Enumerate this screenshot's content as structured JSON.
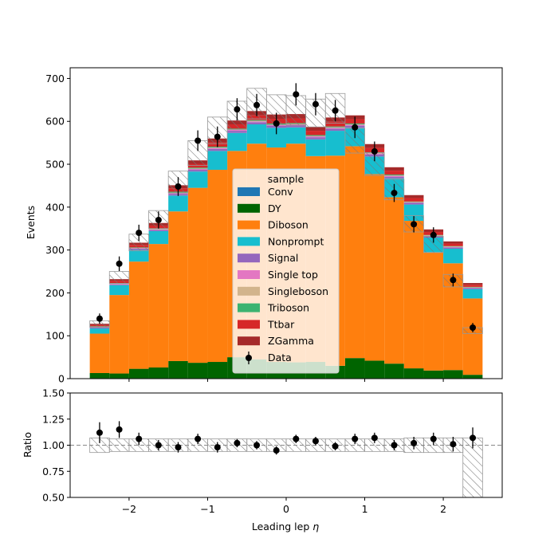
{
  "chart_data": [
    {
      "type": "bar",
      "stacked": true,
      "ylabel": "Events",
      "ylim": [
        0,
        725
      ],
      "xlim": [
        -2.75,
        2.75
      ],
      "yticks": [
        0,
        100,
        200,
        300,
        400,
        500,
        600,
        700
      ],
      "bin_edges": [
        -2.5,
        -2.25,
        -2.0,
        -1.75,
        -1.5,
        -1.25,
        -1.0,
        -0.75,
        -0.5,
        -0.25,
        0.0,
        0.25,
        0.5,
        0.75,
        1.0,
        1.25,
        1.5,
        1.75,
        2.0,
        2.25,
        2.5
      ],
      "legend": {
        "title": "sample",
        "position": "center"
      },
      "series": [
        {
          "name": "Conv",
          "color": "#1f77b4",
          "values": [
            1,
            1,
            1,
            1,
            1,
            1,
            1,
            1,
            1,
            1,
            1,
            1,
            1,
            1,
            1,
            1,
            1,
            1,
            1,
            1
          ]
        },
        {
          "name": "DY",
          "color": "#006400",
          "values": [
            12,
            11,
            22,
            25,
            40,
            36,
            38,
            49,
            44,
            38,
            37,
            38,
            29,
            47,
            41,
            34,
            23,
            18,
            19,
            8
          ]
        },
        {
          "name": "Diboson",
          "color": "#ff7f0e",
          "values": [
            92,
            183,
            250,
            288,
            349,
            408,
            448,
            481,
            503,
            500,
            510,
            480,
            490,
            494,
            435,
            388,
            344,
            276,
            249,
            178
          ]
        },
        {
          "name": "Nonprompt",
          "color": "#17becf",
          "values": [
            12,
            23,
            27,
            30,
            37,
            38,
            44,
            42,
            45,
            46,
            38,
            39,
            58,
            43,
            41,
            44,
            38,
            34,
            34,
            22
          ]
        },
        {
          "name": "Signal",
          "color": "#9467bd",
          "values": [
            2,
            2,
            3,
            3,
            4,
            4,
            5,
            5,
            5,
            5,
            5,
            5,
            5,
            5,
            5,
            4,
            4,
            3,
            3,
            2
          ]
        },
        {
          "name": "Single top",
          "color": "#e377c2",
          "values": [
            1,
            1,
            1,
            1,
            2,
            2,
            2,
            2,
            2,
            2,
            2,
            2,
            2,
            2,
            2,
            2,
            1,
            1,
            1,
            1
          ]
        },
        {
          "name": "Singleboson",
          "color": "#d2b48c",
          "values": [
            1,
            1,
            1,
            1,
            1,
            1,
            1,
            1,
            1,
            1,
            1,
            1,
            1,
            1,
            1,
            1,
            1,
            1,
            1,
            1
          ]
        },
        {
          "name": "Triboson",
          "color": "#3cb371",
          "values": [
            1,
            1,
            1,
            1,
            2,
            2,
            2,
            2,
            2,
            2,
            2,
            2,
            2,
            2,
            2,
            2,
            1,
            1,
            1,
            1
          ]
        },
        {
          "name": "Ttbar",
          "color": "#d62728",
          "values": [
            3,
            5,
            6,
            7,
            8,
            9,
            10,
            10,
            11,
            11,
            11,
            10,
            11,
            10,
            10,
            9,
            8,
            7,
            6,
            5
          ]
        },
        {
          "name": "ZGamma",
          "color": "#a52a2a",
          "values": [
            3,
            4,
            5,
            6,
            7,
            8,
            9,
            9,
            10,
            10,
            10,
            9,
            10,
            9,
            9,
            8,
            7,
            6,
            5,
            4
          ]
        }
      ],
      "uncertainty_band": {
        "label": "",
        "up": [
          135,
          250,
          337,
          392,
          484,
          555,
          610,
          647,
          677,
          662,
          660,
          652,
          665,
          584,
          527,
          465,
          380,
          332,
          243,
          119
        ],
        "down": [
          120,
          222,
          298,
          350,
          433,
          497,
          548,
          581,
          606,
          592,
          591,
          587,
          596,
          526,
          474,
          417,
          342,
          294,
          214,
          105
        ]
      },
      "data": {
        "name": "Data",
        "x": [
          -2.375,
          -2.125,
          -1.875,
          -1.625,
          -1.375,
          -1.125,
          -0.875,
          -0.625,
          -0.375,
          -0.125,
          0.125,
          0.375,
          0.625,
          0.875,
          1.125,
          1.375,
          1.625,
          1.875,
          2.125,
          2.375
        ],
        "y": [
          140,
          268,
          340,
          370,
          448,
          555,
          564,
          628,
          638,
          595,
          663,
          640,
          625,
          586,
          530,
          433,
          360,
          335,
          230,
          119
        ],
        "yerr": [
          12,
          17,
          19,
          20,
          22,
          24,
          24,
          26,
          26,
          25,
          26,
          26,
          25,
          25,
          23,
          21,
          19,
          18,
          15,
          11
        ]
      }
    },
    {
      "type": "scatter",
      "xlabel": "Leading lep η",
      "xlabel_main": "Leading lep ",
      "xlabel_symbol": "η",
      "ylabel": "Ratio",
      "ylim": [
        0.5,
        1.5
      ],
      "xlim": [
        -2.75,
        2.75
      ],
      "yticks": [
        "0.50",
        "0.75",
        "1.00",
        "1.25",
        "1.50"
      ],
      "xticks": [
        "−2",
        "−1",
        "0",
        "1",
        "2"
      ],
      "xtick_values": [
        -2,
        -1,
        0,
        1,
        2
      ],
      "reference_line": 1.0,
      "x": [
        -2.375,
        -2.125,
        -1.875,
        -1.625,
        -1.375,
        -1.125,
        -0.875,
        -0.625,
        -0.375,
        -0.125,
        0.125,
        0.375,
        0.625,
        0.875,
        1.125,
        1.375,
        1.625,
        1.875,
        2.125,
        2.375
      ],
      "y": [
        1.12,
        1.15,
        1.06,
        1.0,
        0.98,
        1.06,
        0.98,
        1.02,
        1.0,
        0.95,
        1.06,
        1.04,
        0.99,
        1.06,
        1.07,
        1.0,
        1.02,
        1.06,
        1.01,
        1.07
      ],
      "yerr": [
        0.1,
        0.08,
        0.06,
        0.05,
        0.05,
        0.05,
        0.05,
        0.04,
        0.04,
        0.04,
        0.04,
        0.04,
        0.04,
        0.05,
        0.05,
        0.05,
        0.06,
        0.06,
        0.07,
        0.1
      ],
      "band_up": [
        1.07,
        1.06,
        1.06,
        1.06,
        1.06,
        1.06,
        1.06,
        1.06,
        1.06,
        1.06,
        1.06,
        1.06,
        1.06,
        1.06,
        1.06,
        1.06,
        1.07,
        1.07,
        1.07,
        1.07
      ],
      "band_down": [
        0.93,
        0.94,
        0.94,
        0.94,
        0.94,
        0.94,
        0.94,
        0.94,
        0.94,
        0.94,
        0.94,
        0.94,
        0.94,
        0.94,
        0.94,
        0.94,
        0.93,
        0.93,
        0.93,
        0.5
      ]
    }
  ]
}
